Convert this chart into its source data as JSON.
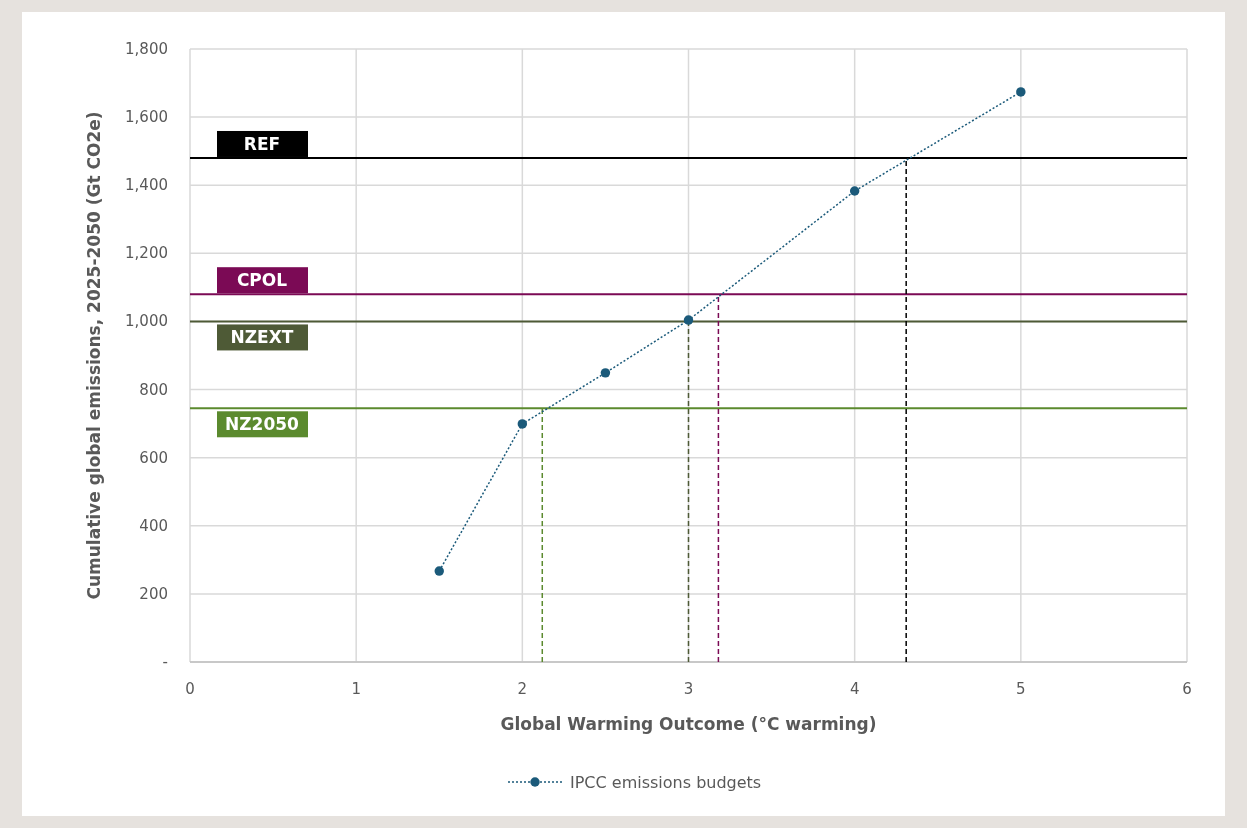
{
  "chart_data": {
    "type": "line",
    "xlabel": "Global Warming Outcome (°C warming)",
    "ylabel": "Cumulative global emissions, 2025-2050 (Gt CO2e)",
    "x": [
      1.5,
      2,
      2.5,
      3,
      4,
      5
    ],
    "series": [
      {
        "name": "IPCC emissions budgets",
        "color": "#1b5a7a",
        "values": [
          267,
          699,
          849,
          1004,
          1383,
          1674
        ]
      }
    ],
    "xlim": [
      0,
      6
    ],
    "xticks": [
      0,
      1,
      2,
      3,
      4,
      5,
      6
    ],
    "ylim": [
      0,
      1800
    ],
    "yticks": [
      {
        "value": 0,
        "label": "-"
      },
      {
        "value": 200,
        "label": "200"
      },
      {
        "value": 400,
        "label": "400"
      },
      {
        "value": 600,
        "label": "600"
      },
      {
        "value": 800,
        "label": "800"
      },
      {
        "value": 1000,
        "label": "1,000"
      },
      {
        "value": 1200,
        "label": "1,200"
      },
      {
        "value": 1400,
        "label": "1,400"
      },
      {
        "value": 1600,
        "label": "1,600"
      },
      {
        "value": 1800,
        "label": "1,800"
      }
    ],
    "grid": true,
    "legend": "bottom",
    "marker": "circle",
    "line_style": "dotted",
    "ref_lines": [
      {
        "axis": "y",
        "value": 1480,
        "label": "REF",
        "color": "#000000"
      },
      {
        "axis": "y",
        "value": 1080,
        "label": "CPOL",
        "color": "#7b0a55"
      },
      {
        "axis": "y",
        "value": 1000,
        "label": "NZEXT",
        "color": "#4e5a36"
      },
      {
        "axis": "y",
        "value": 745,
        "label": "NZ2050",
        "color": "#5b8a2e"
      },
      {
        "axis": "x",
        "value": 2.12,
        "color": "#5b8a2e",
        "line_style": "dashed"
      },
      {
        "axis": "x",
        "value": 3.0,
        "color": "#4e5a36",
        "line_style": "dashed"
      },
      {
        "axis": "x",
        "value": 3.18,
        "color": "#7b0a55",
        "line_style": "dashed"
      },
      {
        "axis": "x",
        "value": 4.31,
        "color": "#000000",
        "line_style": "dashed"
      }
    ]
  }
}
